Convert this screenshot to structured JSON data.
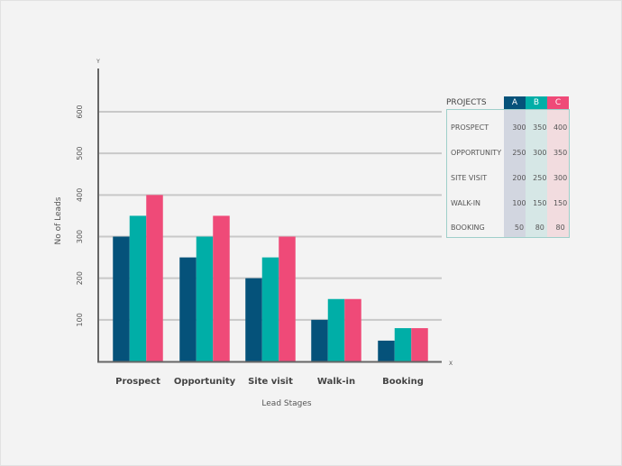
{
  "chart_data": {
    "type": "bar",
    "categories": [
      "Prospect",
      "Opportunity",
      "Site visit",
      "Walk-in",
      "Booking"
    ],
    "series": [
      {
        "name": "A",
        "color": "#05527a",
        "values": [
          300,
          250,
          200,
          100,
          50
        ]
      },
      {
        "name": "B",
        "color": "#00aea7",
        "values": [
          350,
          300,
          250,
          150,
          80
        ]
      },
      {
        "name": "C",
        "color": "#ef4a78",
        "values": [
          400,
          350,
          300,
          150,
          80
        ]
      }
    ],
    "xlabel": "Lead Stages",
    "ylabel": "No of  Leads",
    "x_axis_marker": "X",
    "y_axis_marker": "Y",
    "ylim": [
      0,
      600
    ],
    "yticks": [
      100,
      200,
      300,
      400,
      500,
      600
    ],
    "grid": true,
    "table": {
      "title": "PROJECTS",
      "columns": [
        "A",
        "B",
        "C"
      ],
      "rows": [
        {
          "label": "PROSPECT",
          "values": [
            "300",
            "350",
            "400"
          ]
        },
        {
          "label": "OPPORTUNITY",
          "values": [
            "250",
            "300",
            "350"
          ]
        },
        {
          "label": "SITE VISIT",
          "values": [
            "200",
            "250",
            "300"
          ]
        },
        {
          "label": "WALK-IN",
          "values": [
            "100",
            "150",
            "150"
          ]
        },
        {
          "label": "BOOKING",
          "values": [
            "50",
            "80",
            "80"
          ]
        }
      ]
    }
  }
}
